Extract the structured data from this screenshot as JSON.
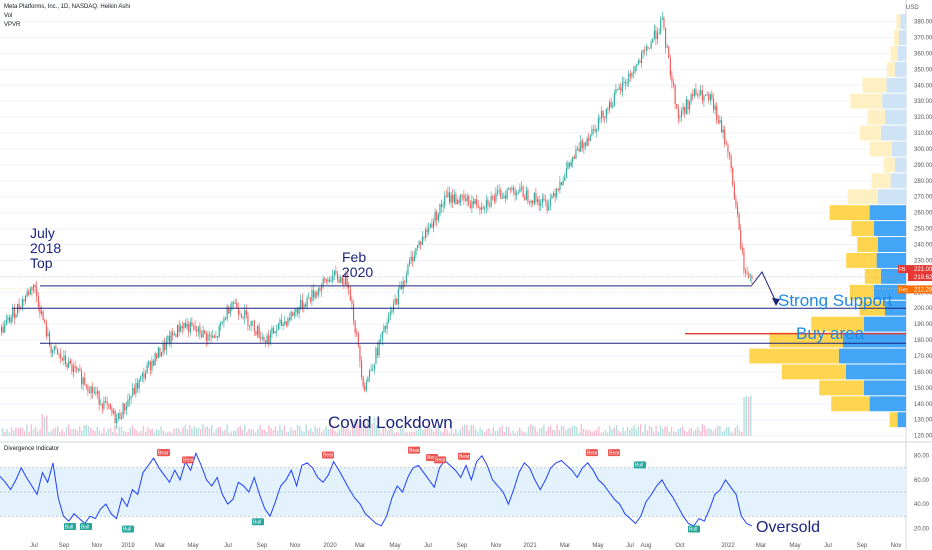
{
  "header": {
    "symbol_line": "Meta Platforms, Inc., 1D, NASDAQ, Heikin Ashi",
    "vol_label": "Vol",
    "vpvr_label": "VPVR",
    "currency": "USD"
  },
  "chart_data": [
    {
      "type": "candlestick",
      "title": "Meta Platforms, Inc., 1D, NASDAQ, Heikin Ashi",
      "ylim": [
        116,
        386
      ],
      "y_ticks": [
        120,
        130,
        140,
        150,
        160,
        170,
        180,
        190,
        200,
        210,
        220,
        230,
        240,
        250,
        260,
        270,
        280,
        290,
        300,
        310,
        320,
        330,
        340,
        350,
        360,
        370,
        380
      ],
      "x_ticks": [
        "Jul",
        "Sep",
        "Nov",
        "2019",
        "Mar",
        "May",
        "Jul",
        "Sep",
        "Nov",
        "2020",
        "Mar",
        "May",
        "Jul",
        "Sep",
        "Nov",
        "2021",
        "Mar",
        "May",
        "Jul",
        "Aug",
        "Oct",
        "2022",
        "Mar",
        "May",
        "Jul",
        "Sep",
        "Nov"
      ],
      "price_path": [
        {
          "date": "2018-05",
          "price": 185
        },
        {
          "date": "2018-07",
          "price": 215
        },
        {
          "date": "2018-08",
          "price": 175
        },
        {
          "date": "2018-10",
          "price": 155
        },
        {
          "date": "2018-12",
          "price": 130
        },
        {
          "date": "2019-02",
          "price": 165
        },
        {
          "date": "2019-04",
          "price": 190
        },
        {
          "date": "2019-06",
          "price": 180
        },
        {
          "date": "2019-07",
          "price": 205
        },
        {
          "date": "2019-09",
          "price": 180
        },
        {
          "date": "2019-11",
          "price": 200
        },
        {
          "date": "2020-01",
          "price": 220
        },
        {
          "date": "2020-02",
          "price": 217
        },
        {
          "date": "2020-03",
          "price": 150
        },
        {
          "date": "2020-04",
          "price": 180
        },
        {
          "date": "2020-06",
          "price": 235
        },
        {
          "date": "2020-08",
          "price": 270
        },
        {
          "date": "2020-10",
          "price": 265
        },
        {
          "date": "2020-12",
          "price": 275
        },
        {
          "date": "2021-02",
          "price": 265
        },
        {
          "date": "2021-04",
          "price": 300
        },
        {
          "date": "2021-06",
          "price": 330
        },
        {
          "date": "2021-08",
          "price": 360
        },
        {
          "date": "2021-09",
          "price": 380
        },
        {
          "date": "2021-10",
          "price": 320
        },
        {
          "date": "2021-11",
          "price": 335
        },
        {
          "date": "2021-12",
          "price": 330
        },
        {
          "date": "2022-01",
          "price": 300
        },
        {
          "date": "2022-02",
          "price": 221
        }
      ],
      "price_labels": [
        {
          "tag": "FB",
          "value": "221.00",
          "color": "#e53935"
        },
        {
          "tag": "",
          "value": "219.62",
          "color": "#e53935"
        },
        {
          "tag": "Res",
          "value": "212.28",
          "color": "#ff6f00"
        }
      ],
      "support_levels": [
        {
          "price": 214,
          "color": "#1a237e"
        },
        {
          "price": 200,
          "color": "#1a237e"
        },
        {
          "price": 184,
          "color": "#e53935"
        },
        {
          "price": 178,
          "color": "#1a237e"
        }
      ],
      "volume_profile": [
        {
          "price": 380,
          "buy": 8,
          "sell": 5
        },
        {
          "price": 370,
          "buy": 10,
          "sell": 6
        },
        {
          "price": 360,
          "buy": 12,
          "sell": 9
        },
        {
          "price": 350,
          "buy": 16,
          "sell": 10
        },
        {
          "price": 340,
          "buy": 28,
          "sell": 30
        },
        {
          "price": 330,
          "buy": 34,
          "sell": 40
        },
        {
          "price": 320,
          "buy": 30,
          "sell": 22
        },
        {
          "price": 310,
          "buy": 36,
          "sell": 26
        },
        {
          "price": 300,
          "buy": 20,
          "sell": 28
        },
        {
          "price": 290,
          "buy": 16,
          "sell": 14
        },
        {
          "price": 280,
          "buy": 22,
          "sell": 24
        },
        {
          "price": 270,
          "buy": 40,
          "sell": 38
        },
        {
          "price": 260,
          "buy": 52,
          "sell": 50
        },
        {
          "price": 250,
          "buy": 46,
          "sell": 28
        },
        {
          "price": 240,
          "buy": 40,
          "sell": 26
        },
        {
          "price": 230,
          "buy": 42,
          "sell": 38
        },
        {
          "price": 220,
          "buy": 36,
          "sell": 20
        },
        {
          "price": 210,
          "buy": 46,
          "sell": 30
        },
        {
          "price": 200,
          "buy": 30,
          "sell": 32
        },
        {
          "price": 190,
          "buy": 60,
          "sell": 66
        },
        {
          "price": 180,
          "buy": 90,
          "sell": 92
        },
        {
          "price": 170,
          "buy": 96,
          "sell": 112
        },
        {
          "price": 160,
          "buy": 86,
          "sell": 80
        },
        {
          "price": 150,
          "buy": 60,
          "sell": 56
        },
        {
          "price": 140,
          "buy": 52,
          "sell": 48
        },
        {
          "price": 130,
          "buy": 12,
          "sell": 10
        }
      ],
      "annotations": [
        {
          "text": "July\n2018\nTop"
        },
        {
          "text": "Feb\n2020"
        },
        {
          "text": "Covid Lockdown"
        },
        {
          "text": "Strong Support"
        },
        {
          "text": "Buy area"
        }
      ]
    },
    {
      "type": "line",
      "title": "Divergence Indicator",
      "ylim": [
        12,
        88
      ],
      "y_ticks": [
        20,
        40,
        60,
        80
      ],
      "band": [
        30,
        70
      ],
      "series": [
        {
          "values": [
            63,
            58,
            52,
            60,
            70,
            62,
            55,
            48,
            66,
            58,
            74,
            45,
            30,
            26,
            32,
            28,
            24,
            30,
            28,
            36,
            40,
            32,
            28,
            45,
            38,
            52,
            48,
            66,
            72,
            78,
            70,
            64,
            58,
            68,
            60,
            75,
            68,
            82,
            72,
            60,
            55,
            62,
            48,
            40,
            44,
            58,
            55,
            50,
            62,
            48,
            36,
            30,
            42,
            55,
            60,
            68,
            55,
            72,
            74,
            70,
            62,
            58,
            64,
            75,
            68,
            60,
            52,
            45,
            40,
            32,
            28,
            24,
            22,
            30,
            45,
            55,
            50,
            62,
            70,
            72,
            66,
            60,
            54,
            70,
            76,
            72,
            68,
            62,
            72,
            60,
            75,
            80,
            72,
            60,
            55,
            50,
            40,
            52,
            66,
            74,
            70,
            60,
            52,
            60,
            70,
            74,
            76,
            72,
            68,
            62,
            70,
            74,
            68,
            60,
            56,
            50,
            44,
            40,
            32,
            28,
            24,
            30,
            42,
            48,
            55,
            60,
            52,
            46,
            38,
            30,
            24,
            22,
            28,
            26,
            36,
            48,
            52,
            60,
            54,
            48,
            30,
            24,
            22
          ]
        }
      ],
      "signals": [
        {
          "label": "Bull"
        },
        {
          "label": "Bull"
        },
        {
          "label": "Bull"
        },
        {
          "label": "Bear"
        },
        {
          "label": "Bear"
        },
        {
          "label": "Bear"
        },
        {
          "label": "Bull"
        },
        {
          "label": "Bear"
        },
        {
          "label": "Bear"
        },
        {
          "label": "Bear"
        },
        {
          "label": "Bear"
        },
        {
          "label": "Bear"
        },
        {
          "label": "Bear"
        },
        {
          "label": "Bear"
        },
        {
          "label": "Bull"
        },
        {
          "label": "Bull"
        }
      ],
      "annotations": [
        {
          "text": "Oversold"
        }
      ]
    }
  ]
}
